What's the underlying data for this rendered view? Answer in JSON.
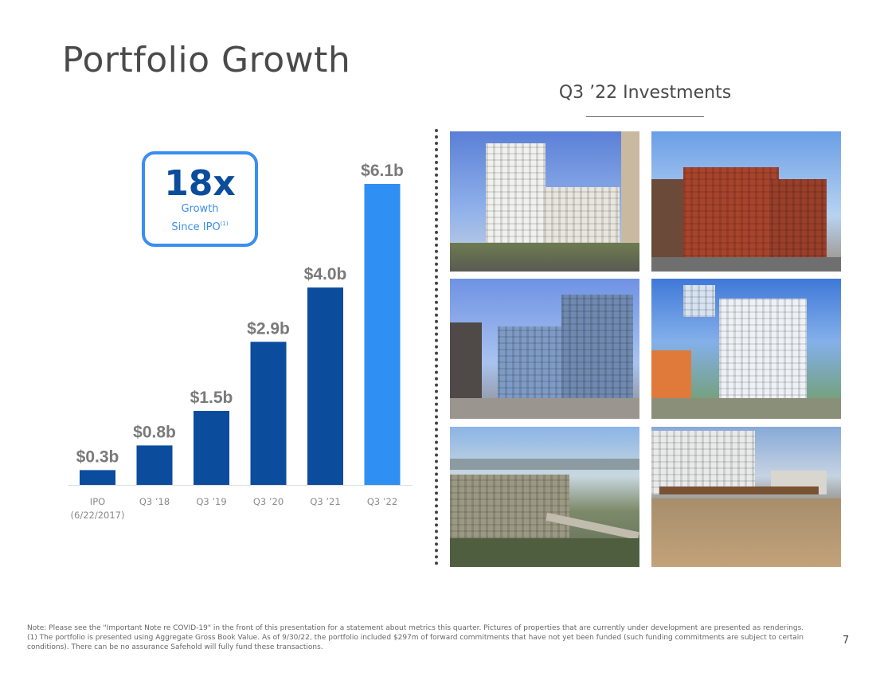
{
  "page": {
    "title": "Portfolio Growth",
    "page_number": "7"
  },
  "callout": {
    "big": "18x",
    "line1": "Growth",
    "line2": "Since IPO",
    "sup": "(1)"
  },
  "investments": {
    "title": "Q3 ’22 Investments"
  },
  "footnote": {
    "line1": "Note: Please see the \"Important Note re COVID-19\" in the front of this presentation for a statement about metrics this quarter. Pictures of properties that are currently under development are presented as renderings.",
    "line2": "(1) The portfolio is presented using Aggregate Gross Book Value. As of 9/30/22, the portfolio included $297m of forward commitments that have not yet been funded (such funding commitments are subject to certain conditions). There can be no assurance Safehold will fully fund these transactions."
  },
  "colors": {
    "bar_dark": "#0b4c9c",
    "bar_highlight": "#2f8ff2",
    "label": "#7a7a7a"
  },
  "chart_data": {
    "type": "bar",
    "categories": [
      "IPO",
      "Q3 ’18",
      "Q3 ’19",
      "Q3 ’20",
      "Q3 ’21",
      "Q3 ’22"
    ],
    "category_sublabels": [
      "(6/22/2017)",
      "",
      "",
      "",
      "",
      ""
    ],
    "values": [
      0.3,
      0.8,
      1.5,
      2.9,
      4.0,
      6.1
    ],
    "data_labels": [
      "$0.3b",
      "$0.8b",
      "$1.5b",
      "$2.9b",
      "$4.0b",
      "$6.1b"
    ],
    "highlight_index": 5,
    "ylim": [
      0,
      6.6
    ],
    "grid": false,
    "legend": "none"
  }
}
